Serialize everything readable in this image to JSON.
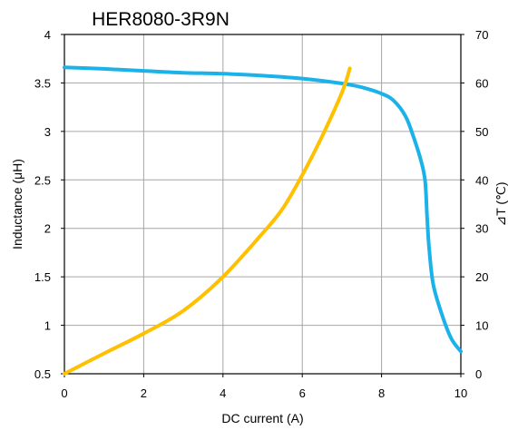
{
  "chart_data": {
    "type": "line",
    "title": "HER8080-3R9N",
    "xlabel": "DC current (A)",
    "ylabel_left": "Inductance (μH)",
    "ylabel_right": "⊿T (℃)",
    "xlim": [
      0,
      10
    ],
    "ylim_left": [
      0.5,
      4
    ],
    "ylim_right": [
      0,
      70
    ],
    "x_ticks": [
      "0",
      "2",
      "4",
      "6",
      "8",
      "10"
    ],
    "y_left_ticks": [
      "0.5",
      "1",
      "1.5",
      "2",
      "2.5",
      "3",
      "3.5",
      "4"
    ],
    "y_right_ticks": [
      "0",
      "10",
      "20",
      "30",
      "40",
      "50",
      "60",
      "70"
    ],
    "grid": true,
    "series": [
      {
        "axis": "left",
        "color": "#1ab2e8",
        "x": [
          0,
          1,
          2,
          3,
          4,
          5,
          6,
          7,
          7.5,
          8,
          8.3,
          8.6,
          8.8,
          9.0,
          9.1,
          9.15,
          9.2,
          9.3,
          9.5,
          9.75,
          10
        ],
        "y": [
          3.66,
          3.645,
          3.625,
          3.605,
          3.595,
          3.575,
          3.545,
          3.495,
          3.455,
          3.39,
          3.32,
          3.16,
          2.95,
          2.69,
          2.48,
          2.1,
          1.8,
          1.43,
          1.14,
          0.87,
          0.73
        ]
      },
      {
        "axis": "right",
        "color": "#ffc000",
        "x": [
          0,
          1,
          2,
          3,
          4,
          5,
          5.5,
          6,
          6.5,
          7,
          7.2
        ],
        "y": [
          0,
          4.2,
          8.3,
          13,
          20,
          29,
          34,
          41,
          49,
          58,
          63
        ]
      }
    ]
  }
}
